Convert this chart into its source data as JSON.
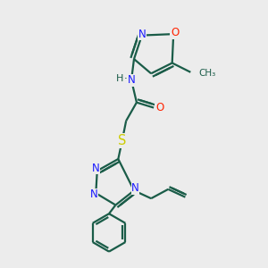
{
  "bg_color": "#ececec",
  "bond_color": "#1a5c48",
  "n_color": "#1a1aff",
  "o_color": "#ff2200",
  "s_color": "#cccc00",
  "line_width": 1.6,
  "figsize": [
    3.0,
    3.0
  ],
  "dpi": 100,
  "fs": 8.5,
  "xlim": [
    0,
    10
  ],
  "ylim": [
    0,
    10
  ]
}
